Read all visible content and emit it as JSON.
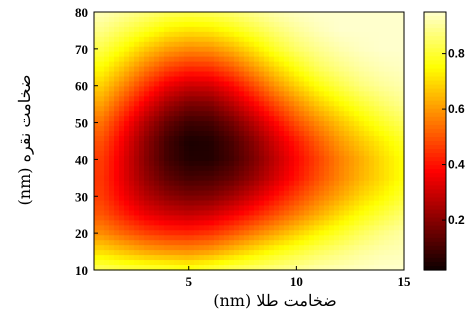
{
  "chart_data": {
    "type": "heatmap",
    "title": "",
    "xlabel": "ضخامت طلا (nm)",
    "ylabel": "ضخامت نقره (nm)",
    "xlim": [
      0.6,
      15
    ],
    "ylim": [
      10,
      80
    ],
    "x_ticks": [
      {
        "value": 5,
        "label": "5"
      },
      {
        "value": 10,
        "label": "10"
      },
      {
        "value": 15,
        "label": "15"
      }
    ],
    "y_ticks": [
      {
        "value": 10,
        "label": "10"
      },
      {
        "value": 20,
        "label": "20"
      },
      {
        "value": 30,
        "label": "30"
      },
      {
        "value": 40,
        "label": "40"
      },
      {
        "value": 50,
        "label": "50"
      },
      {
        "value": 60,
        "label": "60"
      },
      {
        "value": 70,
        "label": "70"
      },
      {
        "value": 80,
        "label": "80"
      }
    ],
    "colormap": "hot",
    "colorbar": {
      "range": [
        0.02,
        0.95
      ],
      "ticks": [
        {
          "value": 0.2,
          "label": "0.2"
        },
        {
          "value": 0.4,
          "label": "0.4"
        },
        {
          "value": 0.6,
          "label": "0.6"
        },
        {
          "value": 0.8,
          "label": "0.8"
        }
      ]
    },
    "minimum": {
      "x": 5,
      "y": 42,
      "value": 0.02
    },
    "x_grid": [
      1,
      2,
      3,
      4,
      5,
      6,
      7,
      8,
      9,
      10,
      11,
      12,
      13,
      14,
      15
    ],
    "y_grid": [
      10,
      15,
      20,
      25,
      30,
      35,
      40,
      45,
      50,
      55,
      60,
      65,
      70,
      75,
      80
    ],
    "values": [
      [
        0.84,
        0.82,
        0.81,
        0.8,
        0.78,
        0.81,
        0.84,
        0.86,
        0.88,
        0.9,
        0.92,
        0.93,
        0.94,
        0.95,
        0.95
      ],
      [
        0.7,
        0.66,
        0.62,
        0.6,
        0.59,
        0.61,
        0.66,
        0.71,
        0.76,
        0.8,
        0.84,
        0.87,
        0.9,
        0.92,
        0.93
      ],
      [
        0.58,
        0.52,
        0.47,
        0.44,
        0.43,
        0.45,
        0.5,
        0.56,
        0.62,
        0.68,
        0.74,
        0.79,
        0.84,
        0.88,
        0.91
      ],
      [
        0.5,
        0.42,
        0.35,
        0.31,
        0.29,
        0.31,
        0.36,
        0.42,
        0.49,
        0.56,
        0.63,
        0.7,
        0.76,
        0.81,
        0.86
      ],
      [
        0.46,
        0.36,
        0.27,
        0.21,
        0.18,
        0.19,
        0.24,
        0.31,
        0.39,
        0.47,
        0.55,
        0.62,
        0.69,
        0.74,
        0.8
      ],
      [
        0.45,
        0.33,
        0.22,
        0.14,
        0.1,
        0.11,
        0.15,
        0.22,
        0.31,
        0.4,
        0.49,
        0.57,
        0.64,
        0.7,
        0.76
      ],
      [
        0.46,
        0.33,
        0.2,
        0.1,
        0.05,
        0.05,
        0.1,
        0.18,
        0.28,
        0.38,
        0.47,
        0.56,
        0.63,
        0.7,
        0.76
      ],
      [
        0.49,
        0.35,
        0.21,
        0.1,
        0.04,
        0.05,
        0.11,
        0.2,
        0.31,
        0.41,
        0.51,
        0.6,
        0.67,
        0.73,
        0.79
      ],
      [
        0.54,
        0.4,
        0.26,
        0.15,
        0.09,
        0.1,
        0.17,
        0.27,
        0.38,
        0.49,
        0.58,
        0.66,
        0.73,
        0.79,
        0.84
      ],
      [
        0.61,
        0.48,
        0.35,
        0.24,
        0.18,
        0.19,
        0.27,
        0.37,
        0.48,
        0.58,
        0.67,
        0.74,
        0.8,
        0.85,
        0.89
      ],
      [
        0.68,
        0.57,
        0.45,
        0.35,
        0.3,
        0.31,
        0.38,
        0.48,
        0.59,
        0.68,
        0.76,
        0.82,
        0.87,
        0.9,
        0.92
      ],
      [
        0.75,
        0.66,
        0.56,
        0.48,
        0.44,
        0.45,
        0.51,
        0.6,
        0.69,
        0.77,
        0.84,
        0.88,
        0.91,
        0.93,
        0.94
      ],
      [
        0.82,
        0.75,
        0.67,
        0.61,
        0.58,
        0.59,
        0.64,
        0.71,
        0.79,
        0.85,
        0.89,
        0.92,
        0.94,
        0.95,
        0.95
      ],
      [
        0.88,
        0.83,
        0.78,
        0.73,
        0.71,
        0.72,
        0.76,
        0.81,
        0.86,
        0.9,
        0.93,
        0.95,
        0.95,
        0.95,
        0.95
      ],
      [
        0.93,
        0.9,
        0.87,
        0.84,
        0.83,
        0.84,
        0.86,
        0.89,
        0.92,
        0.94,
        0.95,
        0.95,
        0.95,
        0.95,
        0.95
      ]
    ]
  }
}
